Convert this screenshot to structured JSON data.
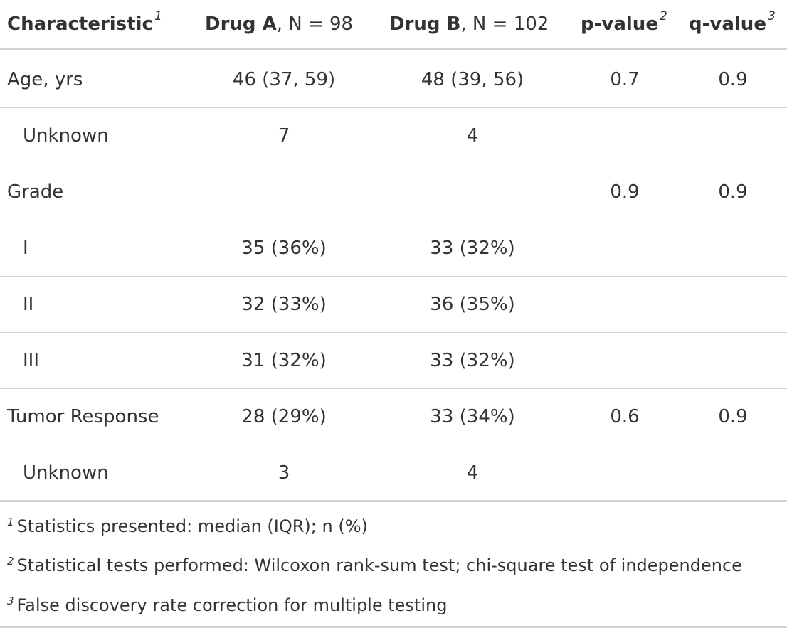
{
  "header": {
    "characteristic": "Characteristic",
    "characteristic_sup": "1",
    "drug_a_bold": "Drug A",
    "drug_a_rest": ", N = 98",
    "drug_b_bold": "Drug B",
    "drug_b_rest": ", N = 102",
    "p_value": "p-value",
    "p_value_sup": "2",
    "q_value": "q-value",
    "q_value_sup": "3"
  },
  "rows": [
    {
      "label": "Age, yrs",
      "drug_a": "46 (37, 59)",
      "drug_b": "48 (39, 56)",
      "p": "0.7",
      "q": "0.9"
    },
    {
      "label": "Unknown",
      "drug_a": "7",
      "drug_b": "4",
      "p": "",
      "q": ""
    },
    {
      "label": "Grade",
      "drug_a": "",
      "drug_b": "",
      "p": "0.9",
      "q": "0.9"
    },
    {
      "label": "I",
      "drug_a": "35 (36%)",
      "drug_b": "33 (32%)",
      "p": "",
      "q": ""
    },
    {
      "label": "II",
      "drug_a": "32 (33%)",
      "drug_b": "36 (35%)",
      "p": "",
      "q": ""
    },
    {
      "label": "III",
      "drug_a": "31 (32%)",
      "drug_b": "33 (32%)",
      "p": "",
      "q": ""
    },
    {
      "label": "Tumor Response",
      "drug_a": "28 (29%)",
      "drug_b": "33 (34%)",
      "p": "0.6",
      "q": "0.9"
    },
    {
      "label": "Unknown",
      "drug_a": "3",
      "drug_b": "4",
      "p": "",
      "q": ""
    }
  ],
  "footnotes": [
    {
      "mark": "1",
      "text": "Statistics presented: median (IQR); n (%)"
    },
    {
      "mark": "2",
      "text": "Statistical tests performed: Wilcoxon rank-sum test; chi-square test of independence"
    },
    {
      "mark": "3",
      "text": "False discovery rate correction for multiple testing"
    }
  ]
}
